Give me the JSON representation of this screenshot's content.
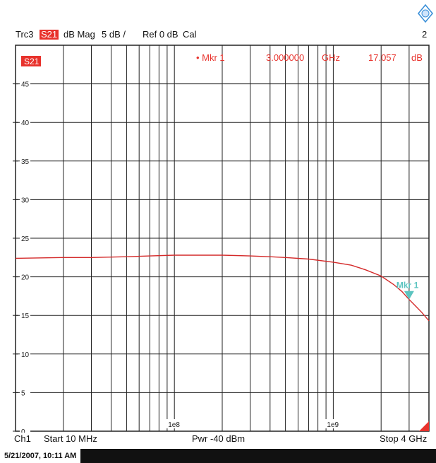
{
  "header": {
    "trace": "Trc3",
    "param": "S21",
    "format": "dB Mag",
    "scale": "5 dB /",
    "ref": "Ref 0 dB",
    "cal": "Cal",
    "window_number": "2"
  },
  "marker_readout": {
    "label": "• Mkr 1",
    "freq": "3.000000",
    "freq_unit": "GHz",
    "value": "17.057",
    "value_unit": "dB"
  },
  "footer": {
    "channel": "Ch1",
    "start": "Start  10 MHz",
    "power": "Pwr  -40 dBm",
    "stop": "Stop  4 GHz"
  },
  "status": {
    "timestamp": "5/21/2007, 10:11 AM"
  },
  "colors": {
    "trace": "#d42a2a",
    "marker": "#5cc4c0",
    "badge": "#e8322c",
    "grid": "#222222",
    "logo": "#3a8fd8"
  },
  "chart_data": {
    "type": "line",
    "trace_label": "S21",
    "x_scale": "log",
    "xlim_hz": [
      10000000,
      4000000000
    ],
    "ylim": [
      0,
      50
    ],
    "y_ticks": [
      0,
      5,
      10,
      15,
      20,
      25,
      30,
      35,
      40,
      45
    ],
    "x_tick_labels": [
      {
        "value": 100000000,
        "label": "1e8"
      },
      {
        "value": 1000000000,
        "label": "1e9"
      }
    ],
    "grid": true,
    "x_hz": [
      10000000,
      20000000,
      30000000,
      50000000,
      70000000,
      100000000,
      150000000,
      200000000,
      300000000,
      400000000,
      500000000,
      700000000,
      1000000000,
      1300000000,
      1600000000,
      2000000000,
      2400000000,
      2700000000,
      3000000000,
      3300000000,
      3600000000,
      4000000000
    ],
    "y_db": [
      22.4,
      22.5,
      22.5,
      22.6,
      22.7,
      22.8,
      22.8,
      22.8,
      22.7,
      22.6,
      22.5,
      22.3,
      21.9,
      21.5,
      20.9,
      20.1,
      19.0,
      18.1,
      17.057,
      16.2,
      15.4,
      14.3
    ],
    "marker": {
      "name": "Mkr 1",
      "x_hz": 3000000000,
      "y_db": 17.057
    }
  }
}
